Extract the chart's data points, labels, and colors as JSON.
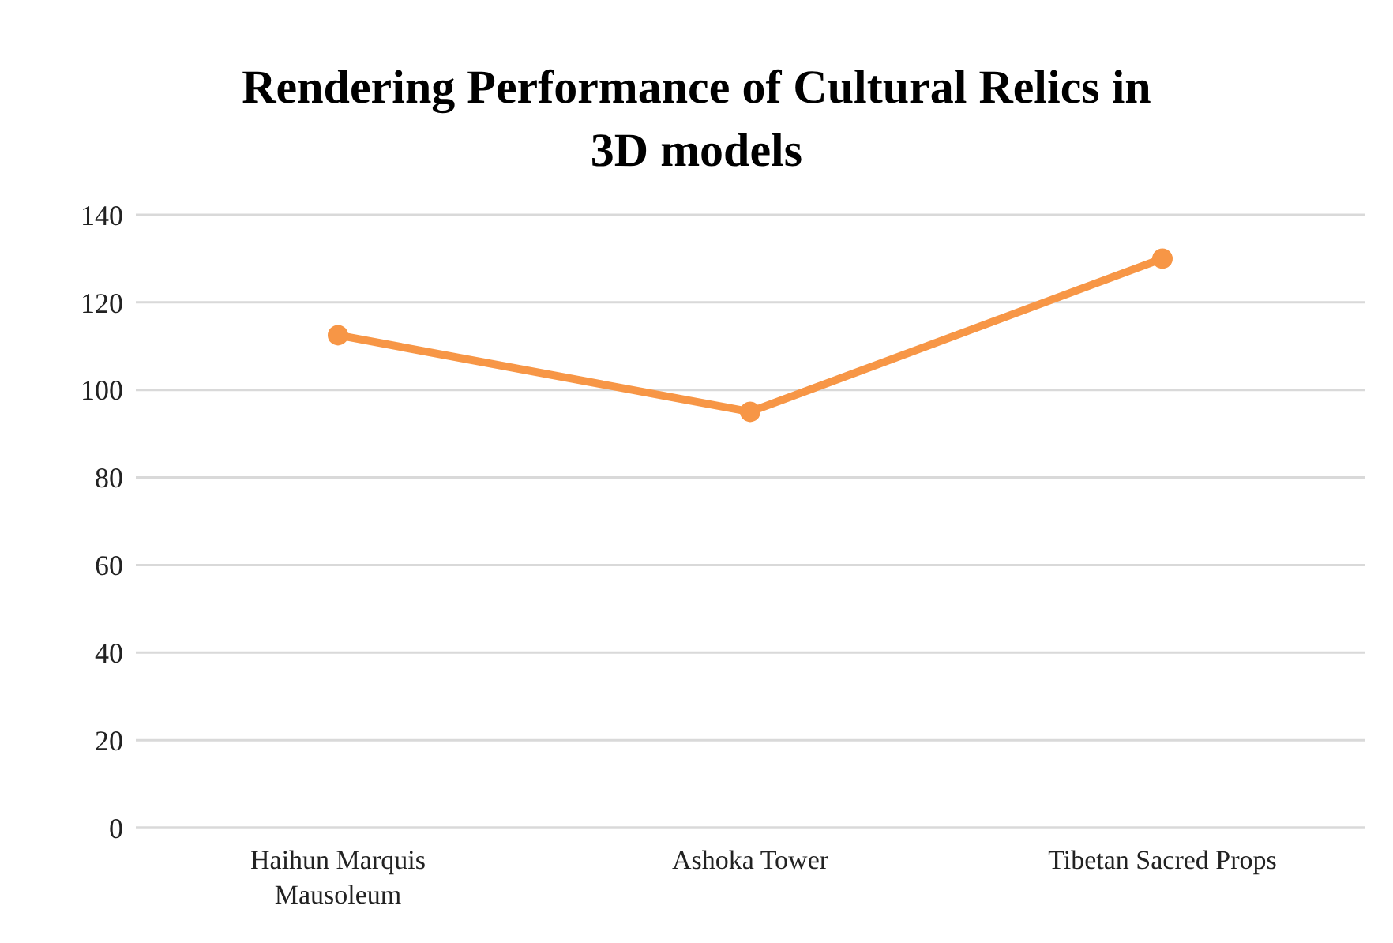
{
  "chart_data": {
    "type": "line",
    "title": "Rendering Performance of Cultural Relics in 3D models",
    "categories": [
      "Haihun Marquis Mausoleum",
      "Ashoka Tower",
      "Tibetan Sacred Props"
    ],
    "series": [
      {
        "color": "#f79646",
        "values": [
          112.5,
          95,
          130
        ]
      }
    ],
    "ylim": [
      0,
      140
    ],
    "yticks": [
      0,
      20,
      40,
      60,
      80,
      100,
      120,
      140
    ],
    "grid": "y",
    "marker": "circle",
    "line_style": "solid"
  }
}
